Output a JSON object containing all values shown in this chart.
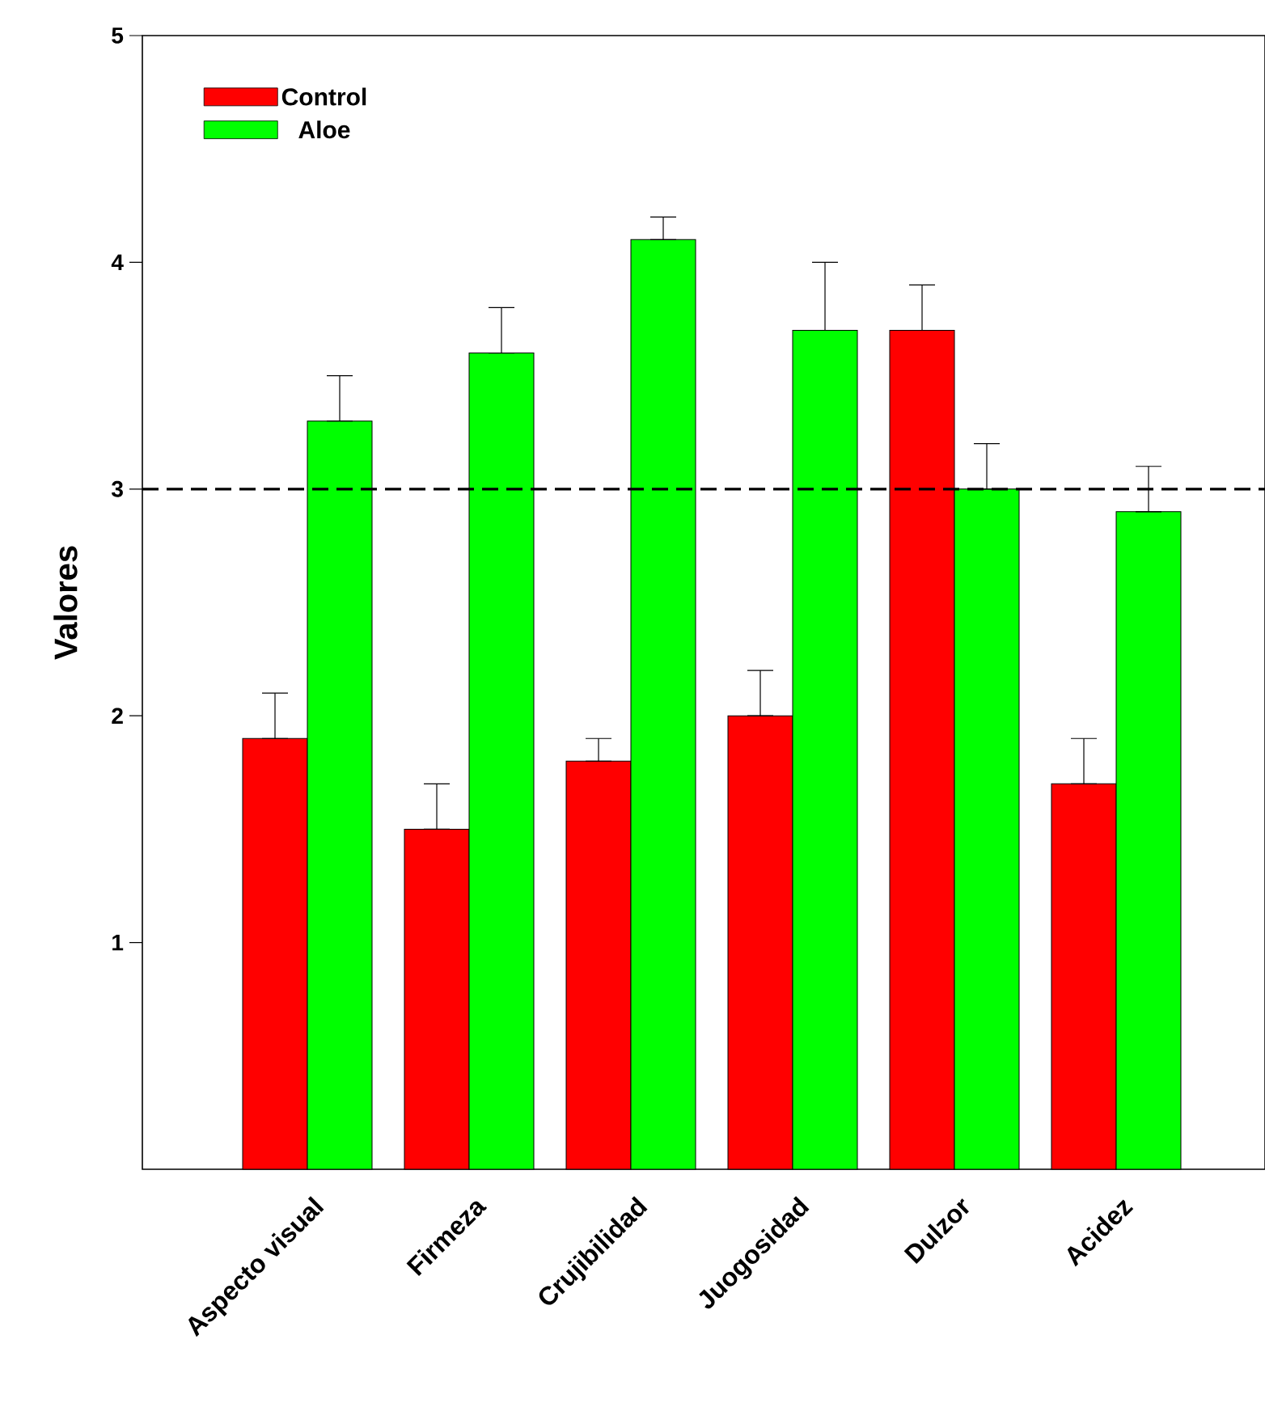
{
  "chart_data": {
    "type": "bar",
    "ylabel": "Valores",
    "categories": [
      "Aspecto visual",
      "Firmeza",
      "Crujibilidad",
      "Juogosidad",
      "Dulzor",
      "Acidez"
    ],
    "series": [
      {
        "name": "Control",
        "color": "#ff0000",
        "values": [
          1.9,
          1.5,
          1.8,
          2.0,
          3.7,
          1.7
        ],
        "errors": [
          [
            1.9,
            2.1
          ],
          [
            1.5,
            1.7
          ],
          [
            1.8,
            1.9
          ],
          [
            2.0,
            2.2
          ],
          [
            3.7,
            3.9
          ],
          [
            1.7,
            1.9
          ]
        ]
      },
      {
        "name": "Aloe",
        "color": "#00ff00",
        "values": [
          3.3,
          3.6,
          4.1,
          3.7,
          3.0,
          2.9
        ],
        "errors": [
          [
            3.3,
            3.5
          ],
          [
            3.6,
            3.8
          ],
          [
            4.1,
            4.2
          ],
          [
            3.7,
            4.0
          ],
          [
            3.0,
            3.2
          ],
          [
            2.9,
            3.1
          ]
        ]
      }
    ],
    "ylim": [
      0,
      5
    ],
    "yticks": [
      1,
      2,
      3,
      4,
      5
    ],
    "ref_lines": [
      {
        "axis": "y",
        "value": 3,
        "line_style": "dashed",
        "color": "#000000"
      }
    ],
    "legend": "top left"
  }
}
